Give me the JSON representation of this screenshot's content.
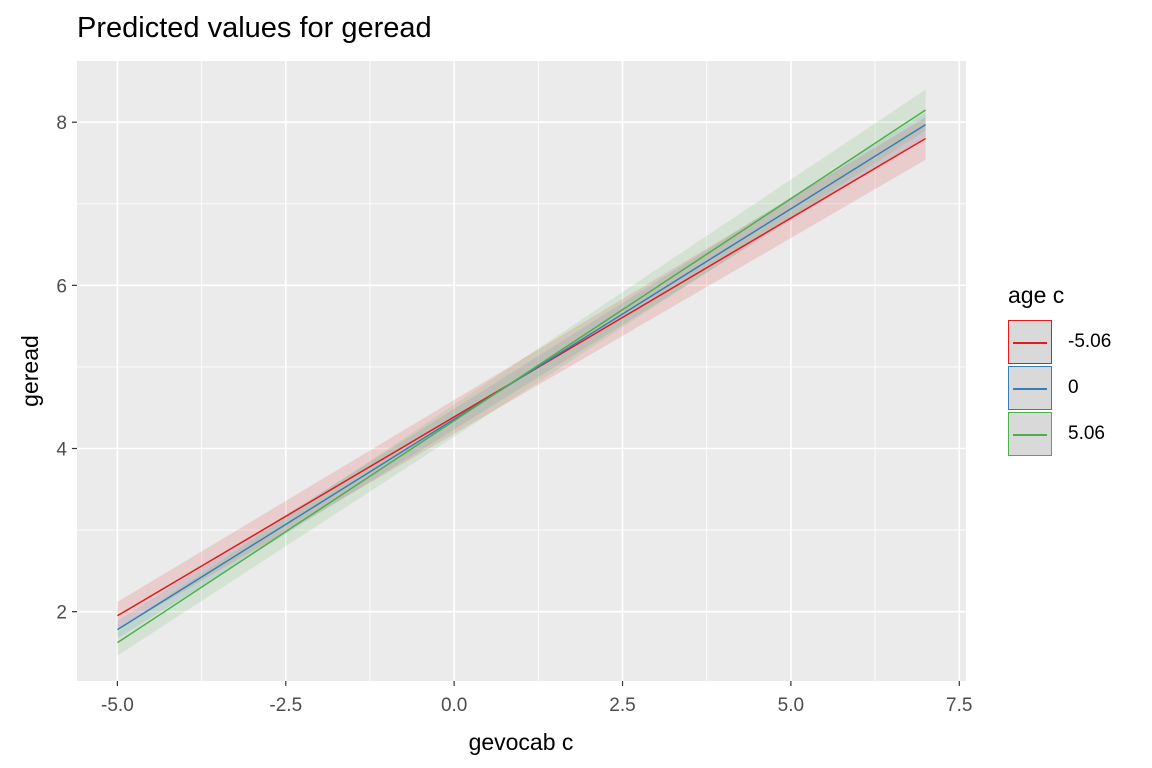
{
  "chart_data": {
    "type": "line",
    "title": "Predicted values for geread",
    "xlabel": "gevocab c",
    "ylabel": "geread",
    "xlim": [
      -5.6,
      7.6
    ],
    "ylim": [
      1.15,
      8.75
    ],
    "x_ticks": [
      -5.0,
      -2.5,
      0.0,
      2.5,
      5.0,
      7.5
    ],
    "x_tick_labels": [
      "-5.0",
      "-2.5",
      "0.0",
      "2.5",
      "5.0",
      "7.5"
    ],
    "y_ticks": [
      2,
      4,
      6,
      8
    ],
    "y_tick_labels": [
      "2",
      "4",
      "6",
      "8"
    ],
    "grid": true,
    "legend_title": "age c",
    "legend_position": "right",
    "series": [
      {
        "name": "-5.06",
        "color": "#e41a1c",
        "x": [
          -5.0,
          7.0
        ],
        "y": [
          1.95,
          7.8
        ],
        "lower": [
          1.78,
          7.54
        ],
        "upper": [
          2.12,
          8.06
        ]
      },
      {
        "name": "0",
        "color": "#377eb8",
        "x": [
          -5.0,
          7.0
        ],
        "y": [
          1.78,
          7.97
        ],
        "lower": [
          1.67,
          7.82
        ],
        "upper": [
          1.89,
          8.12
        ]
      },
      {
        "name": "5.06",
        "color": "#4daf4a",
        "x": [
          -5.0,
          7.0
        ],
        "y": [
          1.62,
          8.15
        ],
        "lower": [
          1.46,
          7.9
        ],
        "upper": [
          1.78,
          8.4
        ]
      }
    ]
  }
}
